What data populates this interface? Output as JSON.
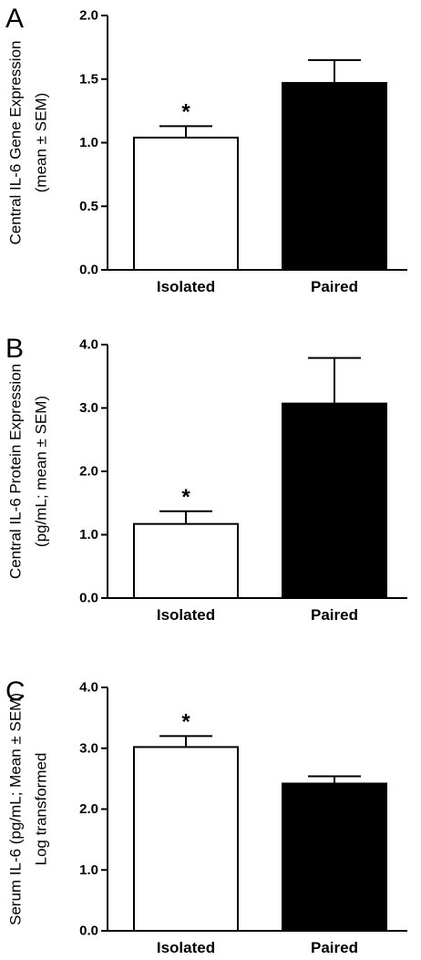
{
  "chart_data": [
    {
      "type": "bar",
      "panel": "A",
      "ylabel": [
        "Central IL-6 Gene Expression",
        "(mean ± SEM)"
      ],
      "categories": [
        "Isolated",
        "Paired"
      ],
      "values": [
        1.04,
        1.47
      ],
      "errors": [
        0.09,
        0.18
      ],
      "colors": [
        "#ffffff",
        "#000000"
      ],
      "ylim": [
        0,
        2.0
      ],
      "yticks": [
        "0.0",
        "0.5",
        "1.0",
        "1.5",
        "2.0"
      ],
      "significance": [
        "*",
        ""
      ]
    },
    {
      "type": "bar",
      "panel": "B",
      "ylabel": [
        "Central IL-6 Protein Expression",
        "(pg/mL; mean ± SEM)"
      ],
      "categories": [
        "Isolated",
        "Paired"
      ],
      "values": [
        1.17,
        3.07
      ],
      "errors": [
        0.2,
        0.72
      ],
      "colors": [
        "#ffffff",
        "#000000"
      ],
      "ylim": [
        0,
        4.0
      ],
      "yticks": [
        "0.0",
        "1.0",
        "2.0",
        "3.0",
        "4.0"
      ],
      "significance": [
        "*",
        ""
      ]
    },
    {
      "type": "bar",
      "panel": "C",
      "ylabel": [
        "Serum IL-6 (pg/mL; Mean ± SEM)",
        "Log transformed"
      ],
      "categories": [
        "Isolated",
        "Paired"
      ],
      "values": [
        3.02,
        2.42
      ],
      "errors": [
        0.18,
        0.12
      ],
      "colors": [
        "#ffffff",
        "#000000"
      ],
      "ylim": [
        0,
        4.0
      ],
      "yticks": [
        "0.0",
        "1.0",
        "2.0",
        "3.0",
        "4.0"
      ],
      "significance": [
        "*",
        ""
      ]
    }
  ]
}
